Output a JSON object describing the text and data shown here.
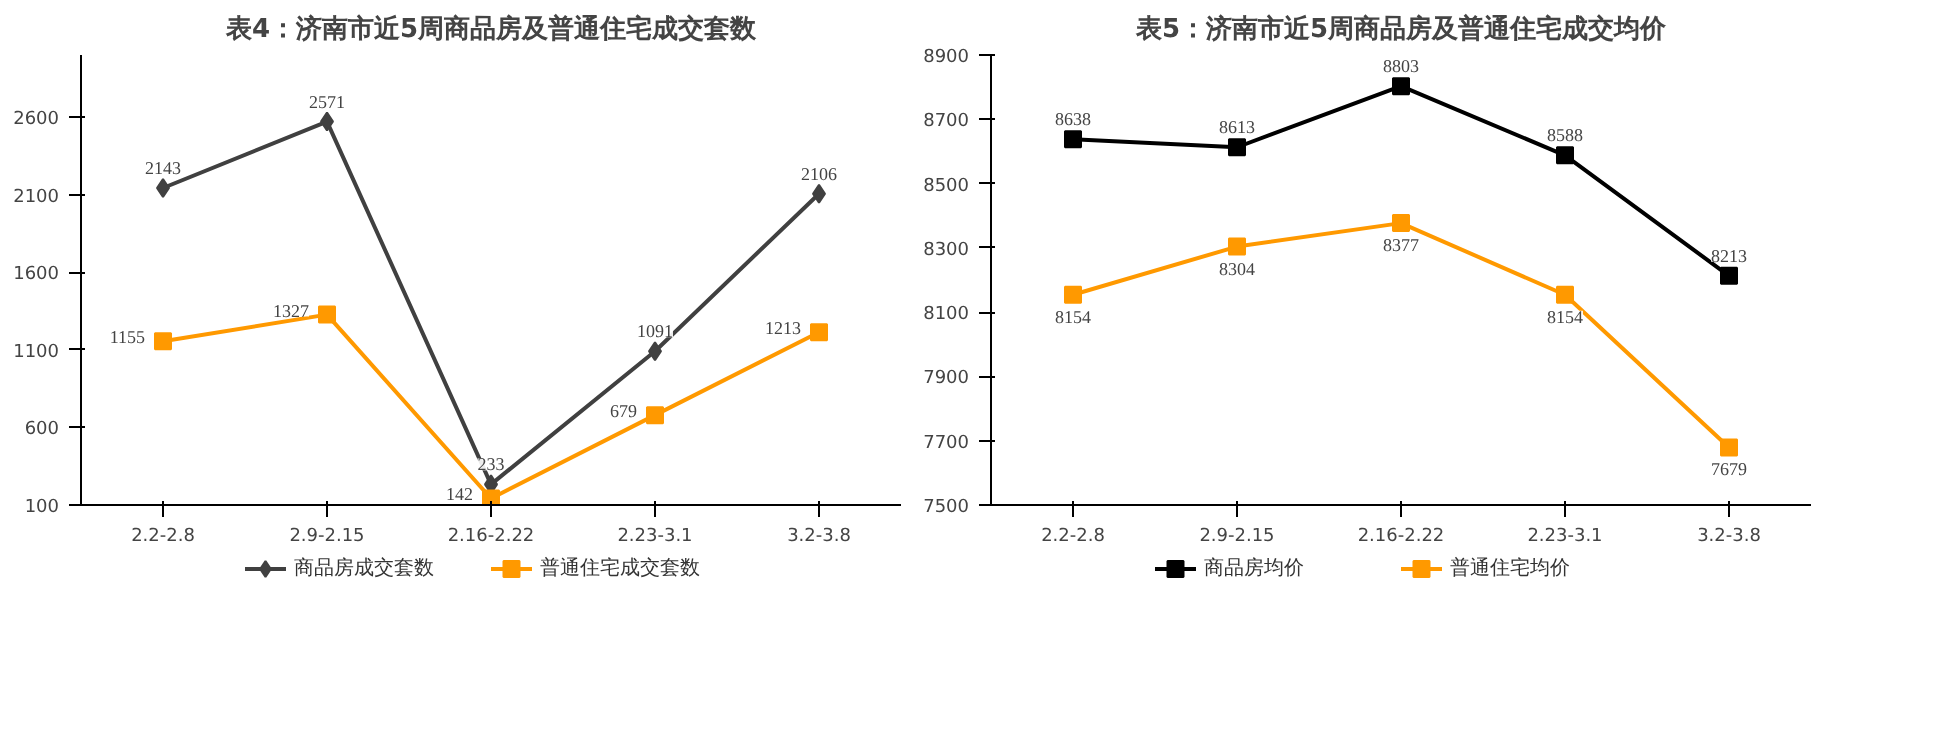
{
  "chart_data": [
    {
      "type": "line",
      "title": "表4：济南市近5周商品房及普通住宅成交套数",
      "categories": [
        "2.2-2.8",
        "2.9-2.15",
        "2.16-2.22",
        "2.23-3.1",
        "3.2-3.8"
      ],
      "ylim": [
        100,
        3000
      ],
      "yticks": [
        100,
        600,
        1100,
        1600,
        2100,
        2600
      ],
      "grid": false,
      "legend": "bottom",
      "data_labels": true,
      "series": [
        {
          "name": "商品房成交套数",
          "color": "#404040",
          "marker": "diamond",
          "values": [
            2143,
            2571,
            233,
            1091,
            2106
          ]
        },
        {
          "name": "普通住宅成交套数",
          "color": "#ff9900",
          "marker": "square",
          "values": [
            1155,
            1327,
            142,
            679,
            1213
          ]
        }
      ]
    },
    {
      "type": "line",
      "title": "表5：济南市近5周商品房及普通住宅成交均价",
      "categories": [
        "2.2-2.8",
        "2.9-2.15",
        "2.16-2.22",
        "2.23-3.1",
        "3.2-3.8"
      ],
      "ylim": [
        7500,
        8900
      ],
      "yticks": [
        7500,
        7700,
        7900,
        8100,
        8300,
        8500,
        8700,
        8900
      ],
      "grid": false,
      "legend": "bottom",
      "data_labels": true,
      "series": [
        {
          "name": "商品房均价",
          "color": "#000000",
          "marker": "square",
          "values": [
            8638,
            8613,
            8803,
            8588,
            8213
          ]
        },
        {
          "name": "普通住宅均价",
          "color": "#ff9900",
          "marker": "square",
          "values": [
            8154,
            8304,
            8377,
            8154,
            7679
          ]
        }
      ]
    }
  ]
}
